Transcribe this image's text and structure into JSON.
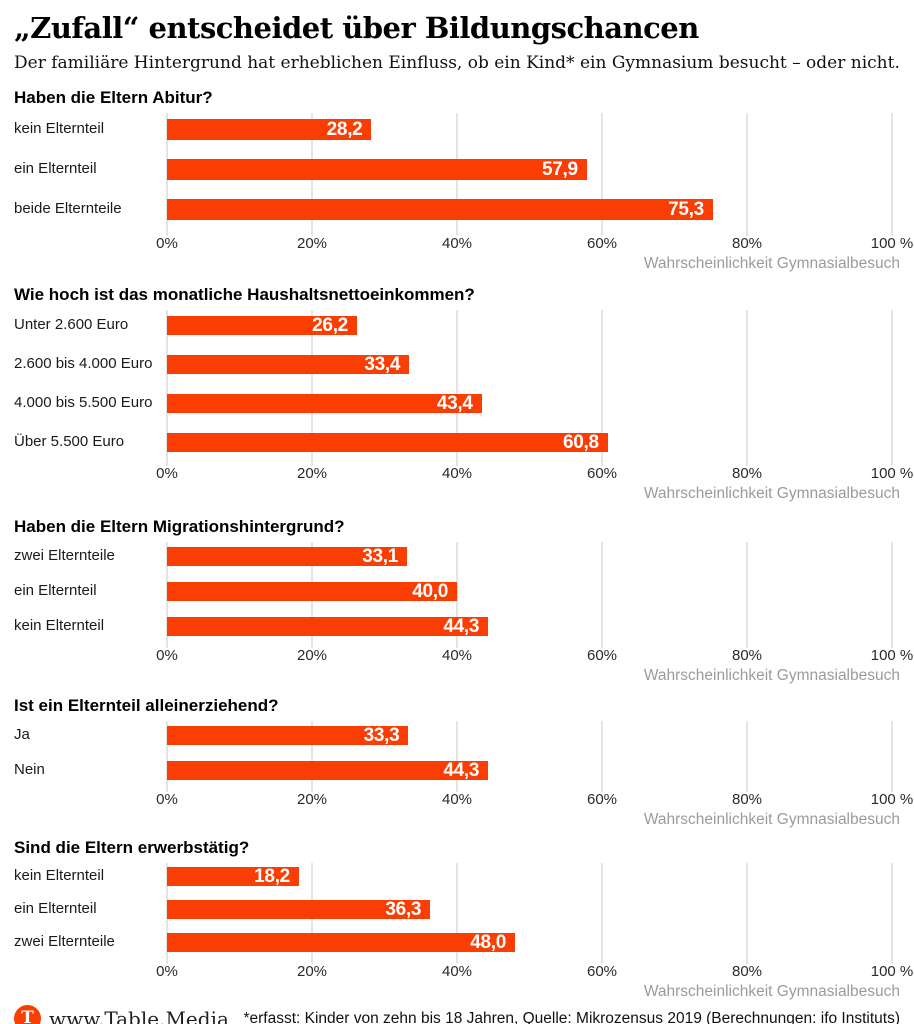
{
  "header": {
    "title": "„Zufall“ entscheidet über Bildungschancen",
    "subtitle": "Der familiäre Hintergrund hat erheblichen Einfluss, ob ein Kind* ein Gymnasium besucht – oder nicht."
  },
  "axis": {
    "ticks": [
      "0%",
      "20%",
      "40%",
      "60%",
      "80%",
      "100 %"
    ],
    "tick_positions": [
      0,
      20,
      40,
      60,
      80,
      100
    ],
    "caption": "Wahrscheinlichkeit Gymnasialbesuch",
    "xlim": [
      0,
      100
    ],
    "grid": true
  },
  "chart_data": [
    {
      "type": "bar",
      "orientation": "horizontal",
      "title": "Haben die Eltern Abitur?",
      "categories": [
        "kein Elternteil",
        "ein Elternteil",
        "beide Elternteile"
      ],
      "values": [
        28.2,
        57.9,
        75.3
      ],
      "value_labels": [
        "28,2",
        "57,9",
        "75,3"
      ],
      "xlabel": "Wahrscheinlichkeit Gymnasialbesuch",
      "xlim": [
        0,
        100
      ]
    },
    {
      "type": "bar",
      "orientation": "horizontal",
      "title": "Wie hoch ist das monatliche Haushaltsnettoeinkommen?",
      "categories": [
        "Unter 2.600 Euro",
        "2.600 bis 4.000 Euro",
        "4.000 bis 5.500 Euro",
        "Über 5.500 Euro"
      ],
      "values": [
        26.2,
        33.4,
        43.4,
        60.8
      ],
      "value_labels": [
        "26,2",
        "33,4",
        "43,4",
        "60,8"
      ],
      "xlabel": "Wahrscheinlichkeit Gymnasialbesuch",
      "xlim": [
        0,
        100
      ]
    },
    {
      "type": "bar",
      "orientation": "horizontal",
      "title": "Haben die Eltern Migrationshintergrund?",
      "categories": [
        "zwei Elternteile",
        "ein Elternteil",
        "kein Elternteil"
      ],
      "values": [
        33.1,
        40.0,
        44.3
      ],
      "value_labels": [
        "33,1",
        "40,0",
        "44,3"
      ],
      "xlabel": "Wahrscheinlichkeit Gymnasialbesuch",
      "xlim": [
        0,
        100
      ]
    },
    {
      "type": "bar",
      "orientation": "horizontal",
      "title": "Ist ein Elternteil alleinerziehend?",
      "categories": [
        "Ja",
        "Nein"
      ],
      "values": [
        33.3,
        44.3
      ],
      "value_labels": [
        "33,3",
        "44,3"
      ],
      "xlabel": "Wahrscheinlichkeit Gymnasialbesuch",
      "xlim": [
        0,
        100
      ]
    },
    {
      "type": "bar",
      "orientation": "horizontal",
      "title": "Sind die Eltern erwerbstätig?",
      "categories": [
        "kein Elternteil",
        "ein Elternteil",
        "zwei Elternteile"
      ],
      "values": [
        18.2,
        36.3,
        48.0
      ],
      "value_labels": [
        "18,2",
        "36,3",
        "48,0"
      ],
      "xlabel": "Wahrscheinlichkeit Gymnasialbesuch",
      "xlim": [
        0,
        100
      ]
    }
  ],
  "footer": {
    "logo_letter": "T",
    "brand": "www.Table.Media",
    "footnote": "*erfasst: Kinder von zehn bis 18 Jahren, Quelle: Mikrozensus 2019 (Berechnungen: ifo Instituts)"
  },
  "colors": {
    "bar": "#F93D03",
    "grid": "#C8C8C8",
    "caption": "#9B9B9B"
  }
}
